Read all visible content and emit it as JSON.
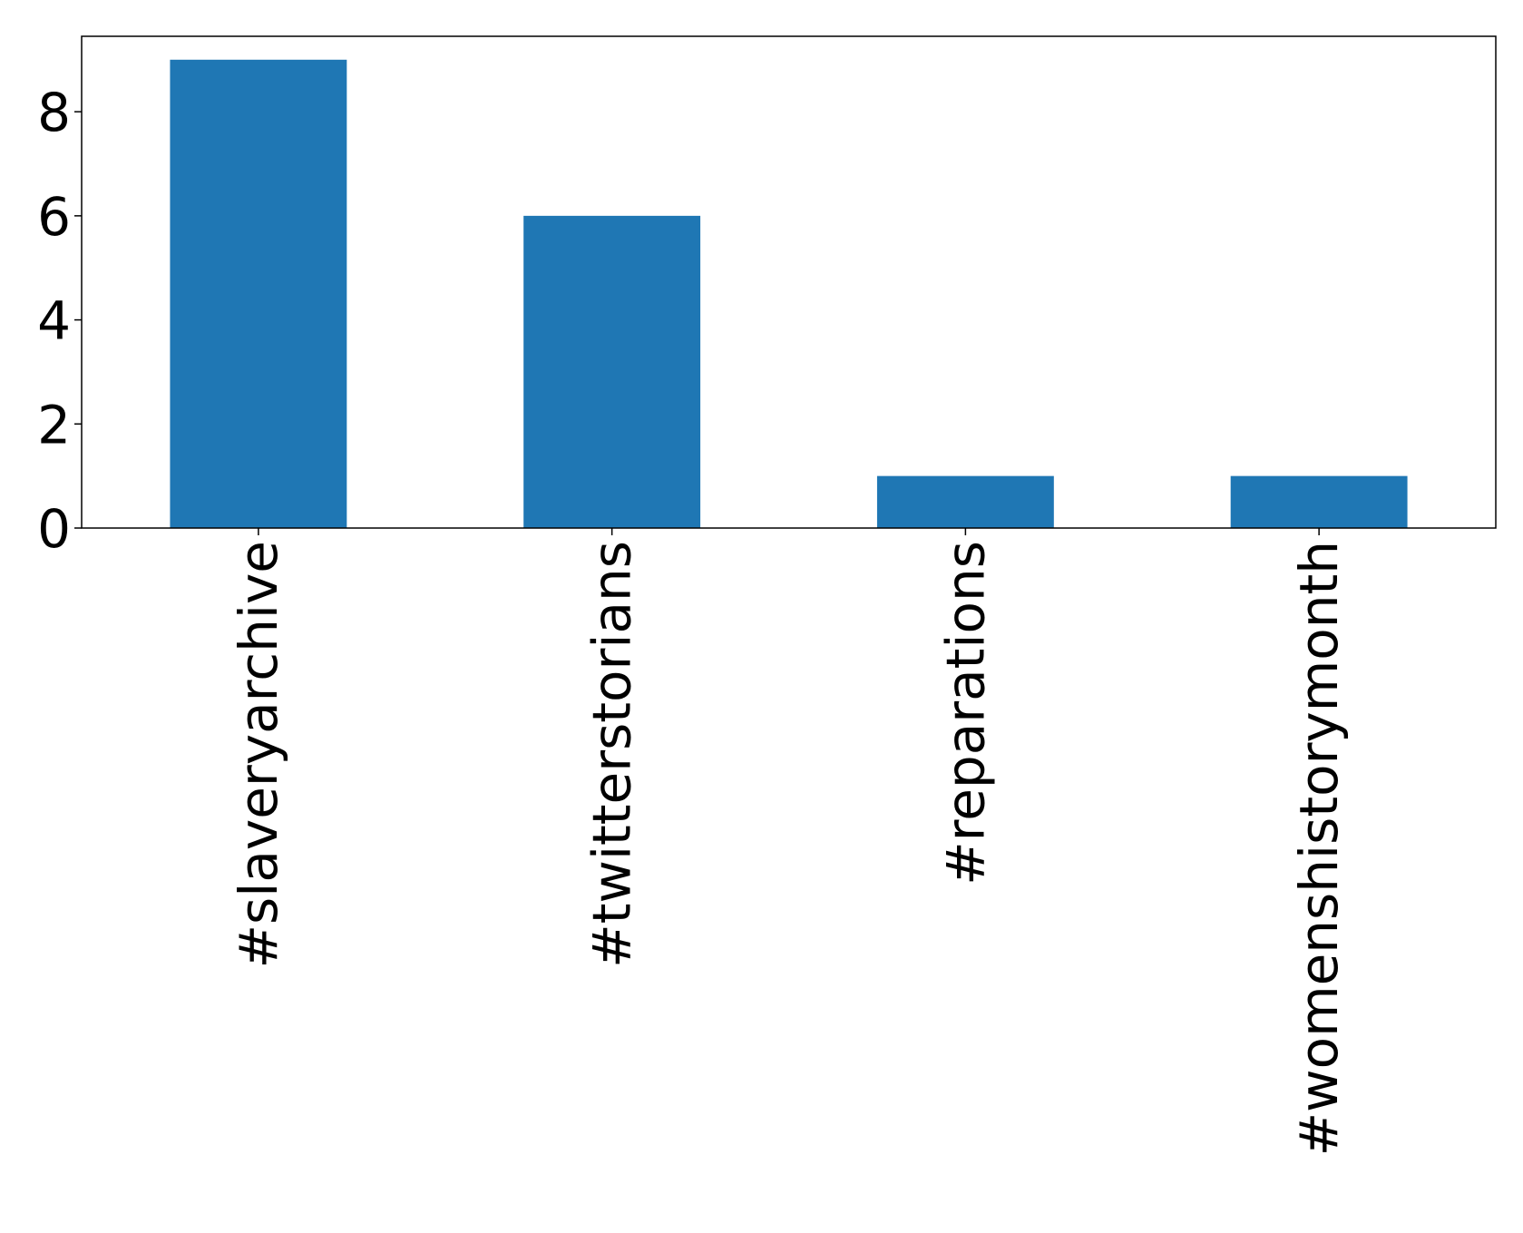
{
  "chart_data": {
    "type": "bar",
    "title": "",
    "xlabel": "",
    "ylabel": "",
    "categories": [
      "#slaveryarchive",
      "#twitterstorians",
      "#reparations",
      "#womenshistorymonth"
    ],
    "values": [
      9,
      6,
      1,
      1
    ],
    "ylim": [
      0,
      9.45
    ],
    "yticks": [
      "0",
      "2",
      "4",
      "6",
      "8"
    ],
    "bar_color": "#1f77b4",
    "grid": false,
    "legend": "none"
  }
}
